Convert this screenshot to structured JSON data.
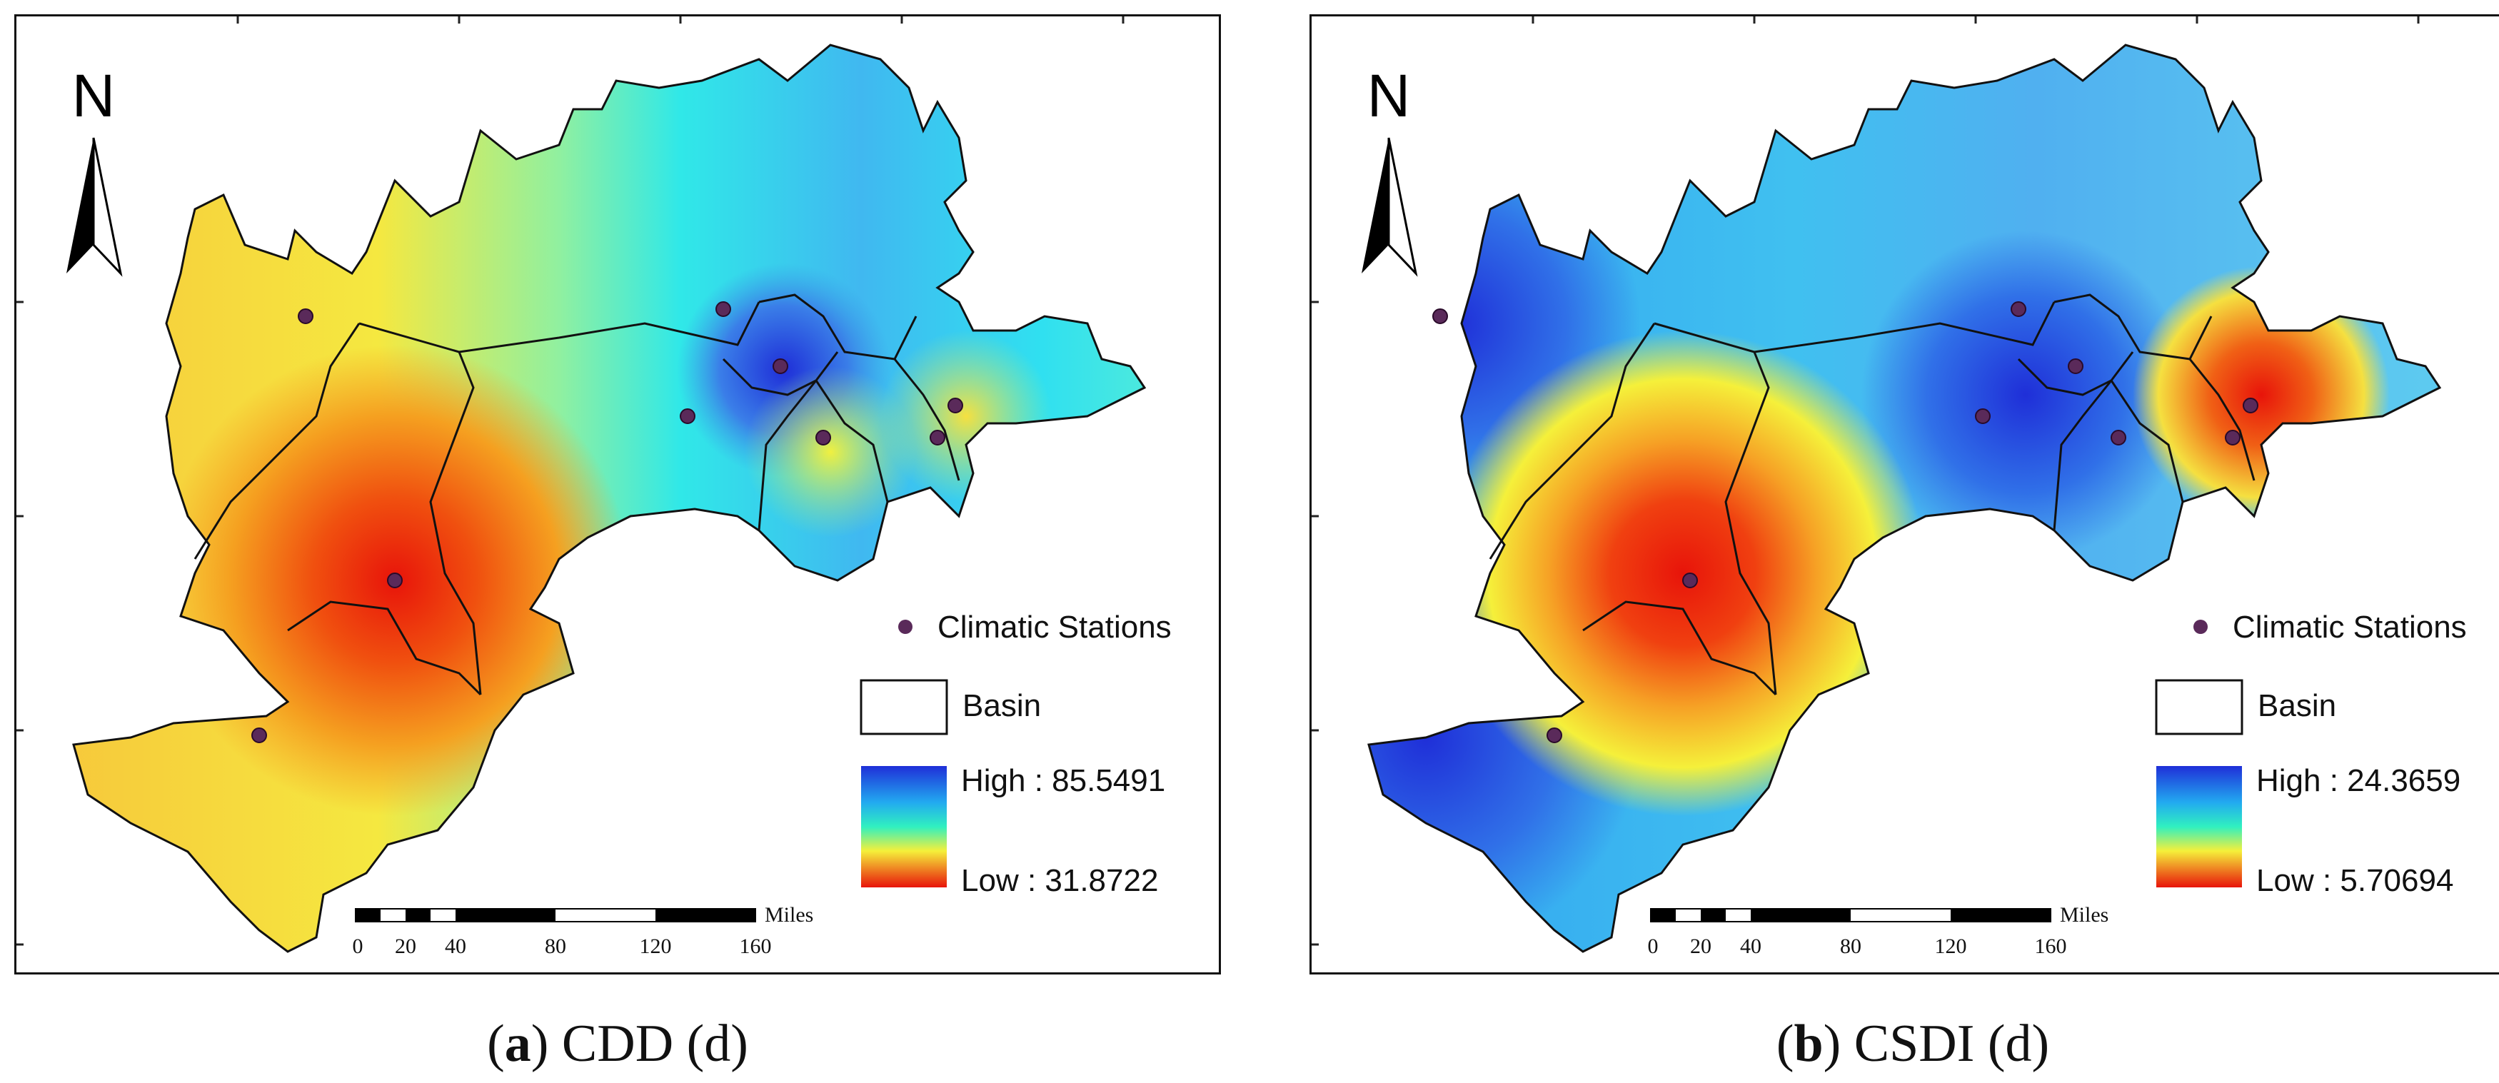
{
  "panels": [
    {
      "id": "a",
      "caption_letter": "a",
      "caption_text": "CDD (d)",
      "north_label": "N",
      "legend": {
        "stations_label": "Climatic Stations",
        "basin_label": "Basin",
        "high_label": "High : 85.5491",
        "low_label": "Low : 31.8722",
        "high_value": 85.5491,
        "low_value": 31.8722
      },
      "scale_bar": {
        "unit": "Miles",
        "ticks": [
          "0",
          "20",
          "40",
          "80",
          "120",
          "160"
        ]
      }
    },
    {
      "id": "b",
      "caption_letter": "b",
      "caption_text": "CSDI (d)",
      "north_label": "N",
      "legend": {
        "stations_label": "Climatic Stations",
        "basin_label": "Basin",
        "high_label": "High : 24.3659",
        "low_label": "Low : 5.70694",
        "high_value": 24.3659,
        "low_value": 5.70694
      },
      "scale_bar": {
        "unit": "Miles",
        "ticks": [
          "0",
          "20",
          "40",
          "80",
          "120",
          "160"
        ]
      }
    }
  ],
  "colors": {
    "high": "#1f2fd8",
    "cyan": "#22e8ee",
    "yellow": "#f5f03a",
    "orange": "#f6a125",
    "low": "#e8140a",
    "station": "#5a2a5a",
    "border": "#111111"
  }
}
